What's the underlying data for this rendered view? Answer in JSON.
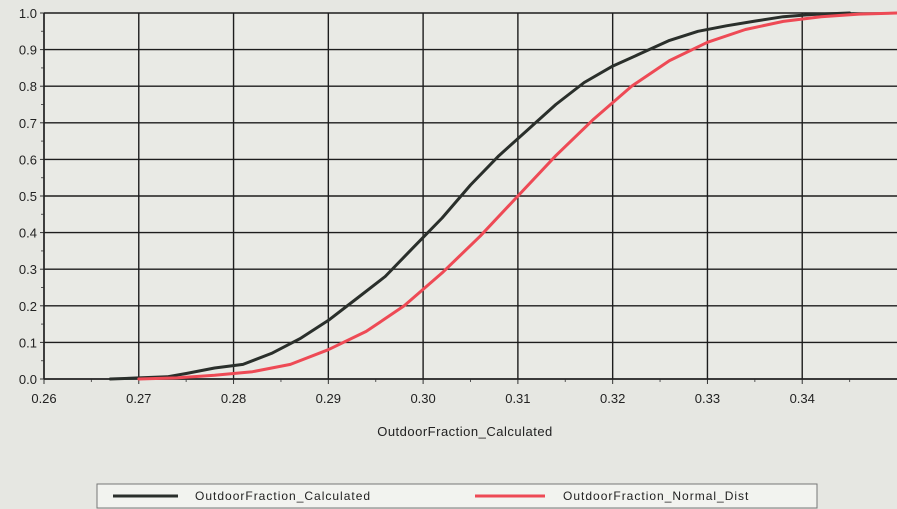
{
  "chart_data": {
    "type": "line",
    "title": "",
    "xlabel": "OutdoorFraction_Calculated",
    "ylabel": "",
    "xlim": [
      0.26,
      0.35
    ],
    "ylim": [
      0.0,
      1.0
    ],
    "x_ticks": [
      "0.26",
      "0.27",
      "0.28",
      "0.29",
      "0.30",
      "0.31",
      "0.32",
      "0.33",
      "0.34"
    ],
    "y_ticks": [
      "0.0",
      "0.1",
      "0.2",
      "0.3",
      "0.4",
      "0.5",
      "0.6",
      "0.7",
      "0.8",
      "0.9",
      "1.0"
    ],
    "grid": true,
    "legend_position": "bottom",
    "series": [
      {
        "name": "OutdoorFraction_Calculated",
        "color": "#2a2f2b",
        "points": [
          [
            0.267,
            0.0
          ],
          [
            0.27,
            0.003
          ],
          [
            0.273,
            0.006
          ],
          [
            0.275,
            0.015
          ],
          [
            0.278,
            0.03
          ],
          [
            0.281,
            0.04
          ],
          [
            0.284,
            0.07
          ],
          [
            0.287,
            0.11
          ],
          [
            0.29,
            0.16
          ],
          [
            0.293,
            0.22
          ],
          [
            0.296,
            0.28
          ],
          [
            0.299,
            0.36
          ],
          [
            0.302,
            0.44
          ],
          [
            0.305,
            0.53
          ],
          [
            0.308,
            0.61
          ],
          [
            0.311,
            0.68
          ],
          [
            0.314,
            0.75
          ],
          [
            0.317,
            0.81
          ],
          [
            0.32,
            0.855
          ],
          [
            0.323,
            0.89
          ],
          [
            0.326,
            0.925
          ],
          [
            0.329,
            0.95
          ],
          [
            0.332,
            0.965
          ],
          [
            0.335,
            0.978
          ],
          [
            0.338,
            0.99
          ],
          [
            0.341,
            0.996
          ],
          [
            0.345,
            1.0
          ]
        ]
      },
      {
        "name": "OutdoorFraction_Normal_Dist",
        "color": "#ee4a55",
        "points": [
          [
            0.27,
            0.0
          ],
          [
            0.274,
            0.003
          ],
          [
            0.278,
            0.01
          ],
          [
            0.282,
            0.02
          ],
          [
            0.286,
            0.04
          ],
          [
            0.29,
            0.08
          ],
          [
            0.294,
            0.13
          ],
          [
            0.298,
            0.2
          ],
          [
            0.302,
            0.29
          ],
          [
            0.306,
            0.39
          ],
          [
            0.31,
            0.5
          ],
          [
            0.314,
            0.61
          ],
          [
            0.318,
            0.71
          ],
          [
            0.322,
            0.8
          ],
          [
            0.326,
            0.87
          ],
          [
            0.33,
            0.92
          ],
          [
            0.334,
            0.955
          ],
          [
            0.338,
            0.977
          ],
          [
            0.342,
            0.99
          ],
          [
            0.346,
            0.997
          ],
          [
            0.35,
            1.0
          ]
        ]
      }
    ]
  }
}
